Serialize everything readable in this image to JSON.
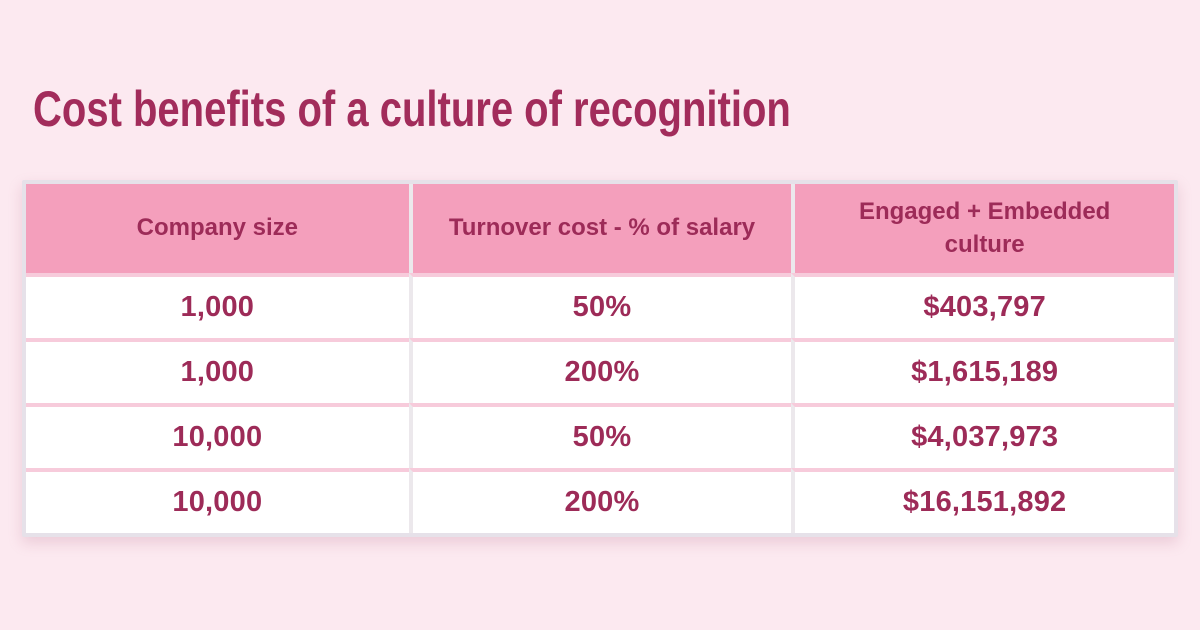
{
  "page": {
    "title": "Cost benefits of a culture of recognition"
  },
  "colors": {
    "background": "#FCE9F0",
    "title_text": "#A22C5B",
    "header_bg": "#F49FBC",
    "cell_text": "#9D2B58",
    "row_divider": "#F7CBDB",
    "column_divider": "#ECE8EC",
    "table_border": "#E6E1E9",
    "row_bg": "#FFFFFF"
  },
  "chart_data": {
    "type": "table",
    "title": "Cost benefits of a culture of recognition",
    "columns": [
      "Company size",
      "Turnover cost - % of salary",
      "Engaged + Embedded culture"
    ],
    "rows": [
      [
        "1,000",
        "50%",
        "$403,797"
      ],
      [
        "1,000",
        "200%",
        "$1,615,189"
      ],
      [
        "10,000",
        "50%",
        "$4,037,973"
      ],
      [
        "10,000",
        "200%",
        "$16,151,892"
      ]
    ],
    "layout": {
      "header_background": "#F49FBC",
      "row_background": "#FFFFFF",
      "text_align": "center"
    }
  }
}
